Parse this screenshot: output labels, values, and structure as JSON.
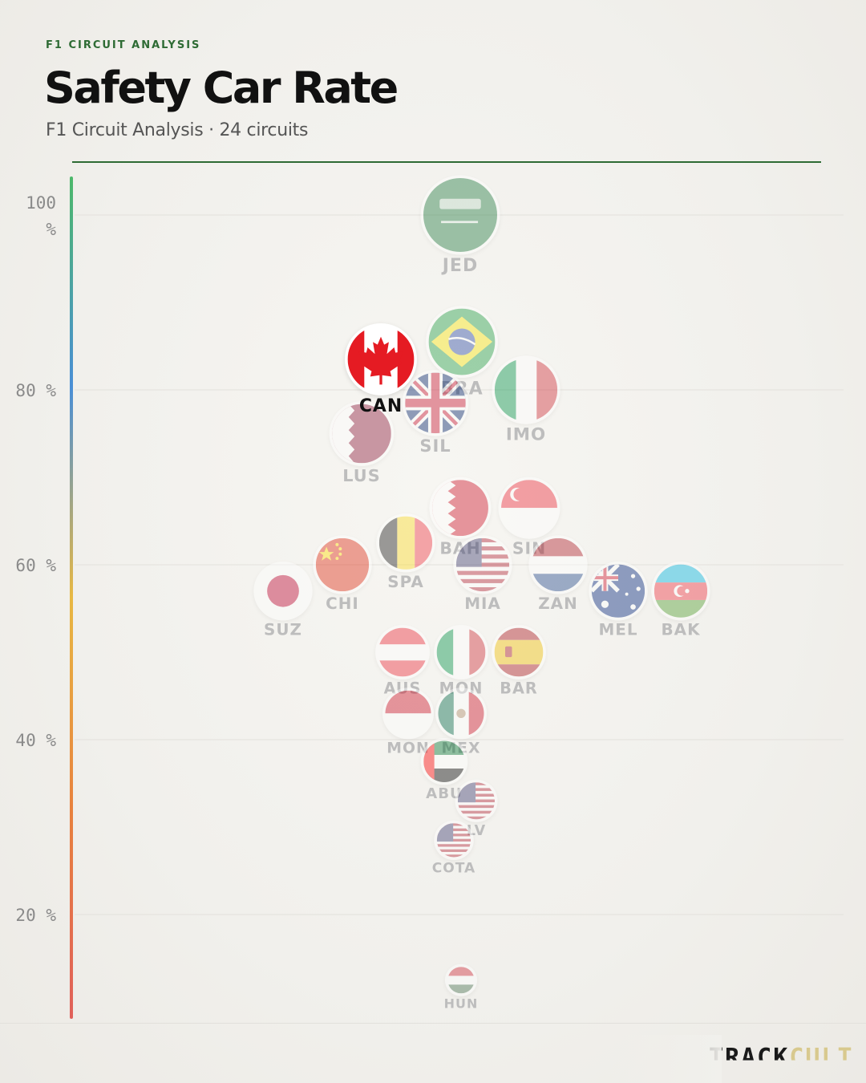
{
  "header": {
    "kicker": "F1 CIRCUIT ANALYSIS",
    "title": "Safety Car Rate",
    "subtitle": "F1 Circuit Analysis · 24 circuits"
  },
  "brand": {
    "part1": "TRACK",
    "part2": "CULT"
  },
  "colors": {
    "accent": "#2e6b34",
    "label_inactive": "#bdbdbd",
    "label_active": "#111111"
  },
  "chart_data": {
    "type": "scatter",
    "title": "Safety Car Rate",
    "ylabel": "",
    "ylim": [
      8.5,
      105
    ],
    "yticks": [
      {
        "value": 100,
        "label": "100 %"
      },
      {
        "value": 80,
        "label": "80 %"
      },
      {
        "value": 60,
        "label": "60 %"
      },
      {
        "value": 40,
        "label": "40 %"
      },
      {
        "value": 20,
        "label": "20 %"
      }
    ],
    "grid": true,
    "axis_color_gradient": [
      "#4db86a",
      "#4a8fd6",
      "#e8b843",
      "#e8823e",
      "#e0605a"
    ],
    "points": [
      {
        "label": "JED",
        "value": 100,
        "xslot": 574,
        "size": 1.0,
        "flag": "saudi",
        "highlight": false
      },
      {
        "label": "BRA",
        "value": 85.5,
        "xslot": 576,
        "size": 0.9,
        "flag": "brazil",
        "highlight": false
      },
      {
        "label": "CAN",
        "value": 83.5,
        "xslot": 475,
        "size": 0.9,
        "flag": "canada",
        "highlight": true
      },
      {
        "label": "IMO",
        "value": 80,
        "xslot": 656,
        "size": 0.85,
        "flag": "italy",
        "highlight": false
      },
      {
        "label": "SIL",
        "value": 78.5,
        "xslot": 543,
        "size": 0.82,
        "flag": "uk",
        "highlight": false
      },
      {
        "label": "LUS",
        "value": 75,
        "xslot": 451,
        "size": 0.8,
        "flag": "qatar",
        "highlight": false
      },
      {
        "label": "BAH",
        "value": 66.5,
        "xslot": 574,
        "size": 0.76,
        "flag": "bahrain",
        "highlight": false
      },
      {
        "label": "SIN",
        "value": 66.5,
        "xslot": 660,
        "size": 0.76,
        "flag": "singapore",
        "highlight": false
      },
      {
        "label": "SPA",
        "value": 62.5,
        "xslot": 506,
        "size": 0.72,
        "flag": "belgium",
        "highlight": false
      },
      {
        "label": "CHI",
        "value": 60,
        "xslot": 427,
        "size": 0.72,
        "flag": "china",
        "highlight": false
      },
      {
        "label": "MIA",
        "value": 60,
        "xslot": 602,
        "size": 0.72,
        "flag": "usa",
        "highlight": false
      },
      {
        "label": "ZAN",
        "value": 60,
        "xslot": 696,
        "size": 0.72,
        "flag": "netherlands",
        "highlight": false
      },
      {
        "label": "SUZ",
        "value": 57,
        "xslot": 353,
        "size": 0.72,
        "flag": "japan",
        "highlight": false
      },
      {
        "label": "MEL",
        "value": 57,
        "xslot": 771,
        "size": 0.72,
        "flag": "australia",
        "highlight": false
      },
      {
        "label": "BAK",
        "value": 57,
        "xslot": 849,
        "size": 0.72,
        "flag": "azerbaijan",
        "highlight": false
      },
      {
        "label": "AUS",
        "value": 50,
        "xslot": 502,
        "size": 0.66,
        "flag": "austria",
        "highlight": false
      },
      {
        "label": "MON",
        "value": 50,
        "xslot": 575,
        "size": 0.66,
        "flag": "italy",
        "highlight": false
      },
      {
        "label": "BAR",
        "value": 50,
        "xslot": 647,
        "size": 0.66,
        "flag": "spain",
        "highlight": false
      },
      {
        "label": "MON",
        "value": 43,
        "xslot": 509,
        "size": 0.62,
        "flag": "monaco",
        "highlight": false
      },
      {
        "label": "MEX",
        "value": 43,
        "xslot": 575,
        "size": 0.62,
        "flag": "mexico",
        "highlight": false
      },
      {
        "label": "ABU",
        "value": 37.5,
        "xslot": 554,
        "size": 0.56,
        "flag": "uae",
        "highlight": false
      },
      {
        "label": "LV",
        "value": 33,
        "xslot": 594,
        "size": 0.5,
        "flag": "usa",
        "highlight": false
      },
      {
        "label": "COTA",
        "value": 28.5,
        "xslot": 566,
        "size": 0.46,
        "flag": "usa",
        "highlight": false
      },
      {
        "label": "HUN",
        "value": 12.5,
        "xslot": 575,
        "size": 0.36,
        "flag": "hungary",
        "highlight": false
      }
    ]
  }
}
